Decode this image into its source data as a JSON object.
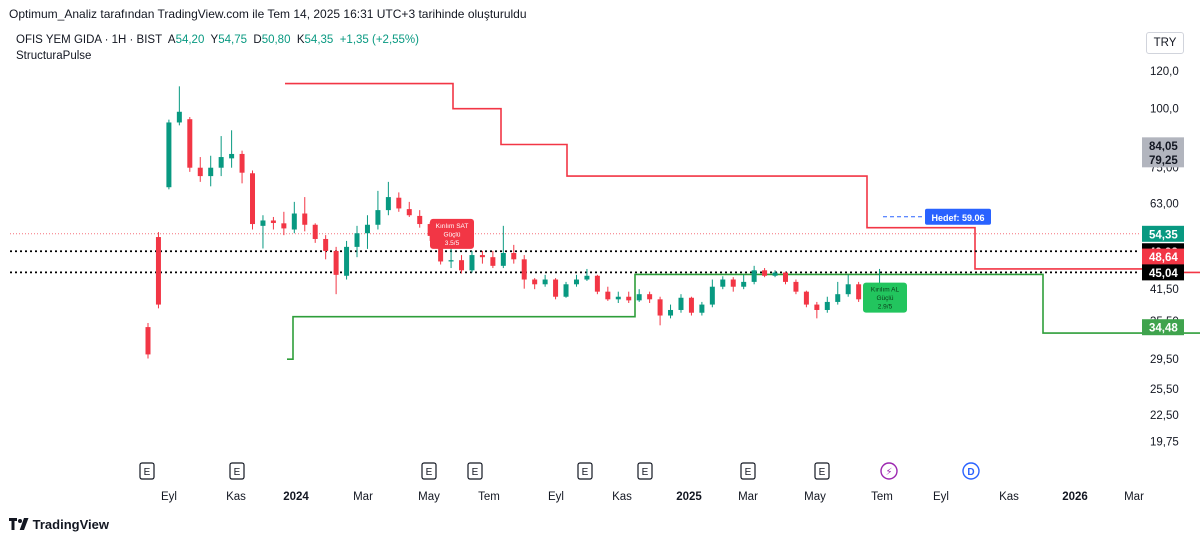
{
  "caption": "Optimum_Analiz tarafından TradingView.com ile Tem 14, 2025 16:31 UTC+3 tarihinde oluşturuldu",
  "legend": {
    "symbol": "OFIS YEM GIDA · 1H · BIST",
    "open_label": "A",
    "open": "54,20",
    "high_label": "Y",
    "high": "54,75",
    "low_label": "D",
    "low": "50,80",
    "close_label": "K",
    "close": "54,35",
    "change": "+1,35 (+2,55%)",
    "indicator": "StructuraPulse"
  },
  "currency": "TRY",
  "footer": {
    "brand": "TradingView"
  },
  "colors": {
    "up": "#089981",
    "down": "#f23645",
    "resistance": "#f23645",
    "support": "#2e9e3a",
    "dotted": "#000000",
    "price_line": "#f23645",
    "target": "#2962ff"
  },
  "chart_data": {
    "type": "candlestick",
    "y_axis": {
      "scale": "log",
      "ylim": [
        18.5,
        128
      ],
      "tick_labels": [
        "120,0",
        "100,0",
        "75,00",
        "63,00",
        "41,50",
        "35,50",
        "29,50",
        "25,50",
        "22,50",
        "19,75"
      ],
      "tick_values": [
        120.0,
        100.0,
        75.0,
        63.0,
        41.5,
        35.5,
        29.5,
        25.5,
        22.5,
        19.75
      ]
    },
    "x_axis": {
      "labels": [
        "Eyl",
        "Kas",
        "2024",
        "Mar",
        "May",
        "Tem",
        "Eyl",
        "Kas",
        "2025",
        "Mar",
        "May",
        "Tem",
        "Eyl",
        "Kas",
        "2026",
        "Mar"
      ],
      "bold": [
        "2024",
        "2025",
        "2026"
      ]
    },
    "price_badges": [
      {
        "label": "84,05",
        "value": 84.05,
        "bg": "#b2b5be",
        "fg": "#131722"
      },
      {
        "label": "79,25",
        "value": 79.25,
        "bg": "#b2b5be",
        "fg": "#131722"
      },
      {
        "label": "54,35",
        "value": 54.35,
        "bg": "#089981",
        "fg": "#ffffff"
      },
      {
        "label": "49,92",
        "value": 49.92,
        "bg": "#000000",
        "fg": "#ffffff"
      },
      {
        "label": "48,64",
        "value": 48.64,
        "bg": "#f23645",
        "fg": "#ffffff"
      },
      {
        "label": "45,04",
        "value": 45.04,
        "bg": "#000000",
        "fg": "#ffffff"
      },
      {
        "label": "34,48",
        "value": 34.48,
        "bg": "#3fa34d",
        "fg": "#ffffff"
      }
    ],
    "dotted_levels": [
      49.92,
      45.04
    ],
    "last_price": 54.35,
    "target": {
      "label": "Hedef: 59.06",
      "value": 59.06
    },
    "signals": [
      {
        "kind": "sell",
        "line1": "Kırılım SAT",
        "line2": "Güçlü",
        "line3": "3.5/5",
        "value": 52.5
      },
      {
        "kind": "buy",
        "line1": "Kırılım AL",
        "line2": "Güçlü",
        "line3": "2.9/5",
        "value": 38.5
      }
    ],
    "events": [
      "E",
      "E",
      "E",
      "E",
      "E",
      "E",
      "E",
      "E",
      "⚡",
      "D"
    ],
    "resistance_steps": [
      [
        0,
        113
      ],
      [
        28,
        113
      ],
      [
        28,
        100
      ],
      [
        36,
        100
      ],
      [
        36,
        84
      ],
      [
        47,
        84
      ],
      [
        47,
        72
      ],
      [
        97,
        72
      ],
      [
        97,
        56
      ],
      [
        115,
        56
      ],
      [
        115,
        45.8
      ],
      [
        148,
        45.8
      ],
      [
        148,
        45.04
      ],
      [
        153,
        45.04
      ],
      [
        153,
        44.6
      ],
      [
        168,
        44.6
      ],
      [
        168,
        46.2
      ],
      [
        200,
        46.2
      ],
      [
        200,
        44.6
      ],
      [
        216,
        44.6
      ],
      [
        216,
        48.64
      ],
      [
        229,
        48.64
      ]
    ],
    "support_steps": [
      [
        0,
        29.5
      ],
      [
        1,
        29.5
      ],
      [
        1,
        36.3
      ],
      [
        58,
        36.3
      ],
      [
        58,
        44.6
      ],
      [
        126,
        44.6
      ],
      [
        126,
        33.5
      ],
      [
        165,
        33.5
      ],
      [
        165,
        34.48
      ],
      [
        230,
        34.48
      ]
    ],
    "candles": [
      [
        34.5,
        30.2,
        35.2,
        29.6
      ],
      [
        53.5,
        38.5,
        54.8,
        37.8
      ],
      [
        68.2,
        93.5,
        94.8,
        67.5
      ],
      [
        93.5,
        98.5,
        111.5,
        92.2
      ],
      [
        95.0,
        75.0,
        96.0,
        73.5
      ],
      [
        75.0,
        72.0,
        79.0,
        70.0
      ],
      [
        72.0,
        75.0,
        79.5,
        68.5
      ],
      [
        75.0,
        79.0,
        87.5,
        72.0
      ],
      [
        78.5,
        80.2,
        90.0,
        75.0
      ],
      [
        80.2,
        73.2,
        81.5,
        69.5
      ],
      [
        73.0,
        57.0,
        74.0,
        55.5
      ],
      [
        56.5,
        58.0,
        59.5,
        50.6
      ],
      [
        58.0,
        57.3,
        59.0,
        55.5
      ],
      [
        57.2,
        55.8,
        60.5,
        54.0
      ],
      [
        55.5,
        60.0,
        63.5,
        54.5
      ],
      [
        60.0,
        56.8,
        65.0,
        55.0
      ],
      [
        56.8,
        53.0,
        57.2,
        52.0
      ],
      [
        53.0,
        50.0,
        54.0,
        48.0
      ],
      [
        50.0,
        44.5,
        51.0,
        40.5
      ],
      [
        44.3,
        51.0,
        52.5,
        43.5
      ],
      [
        51.0,
        54.5,
        56.5,
        48.5
      ],
      [
        54.5,
        56.8,
        59.5,
        50.5
      ],
      [
        56.8,
        61.0,
        67.0,
        55.5
      ],
      [
        61.0,
        65.0,
        70.0,
        59.5
      ],
      [
        64.8,
        61.5,
        66.5,
        60.5
      ],
      [
        61.3,
        59.5,
        63.5,
        59.0
      ],
      [
        59.3,
        57.0,
        61.0,
        56.0
      ],
      [
        57.0,
        53.8,
        57.5,
        52.5
      ],
      [
        53.8,
        47.5,
        55.0,
        46.8
      ],
      [
        47.5,
        47.8,
        51.5,
        46.0
      ],
      [
        47.8,
        45.5,
        49.0,
        44.8
      ],
      [
        45.5,
        49.0,
        50.0,
        45.0
      ],
      [
        49.0,
        48.5,
        50.0,
        47.0
      ],
      [
        48.5,
        46.5,
        50.0,
        46.0
      ],
      [
        46.5,
        49.5,
        56.5,
        46.0
      ],
      [
        49.5,
        48.0,
        51.5,
        47.0
      ],
      [
        48.0,
        43.5,
        49.0,
        41.6
      ],
      [
        43.5,
        42.5,
        43.8,
        41.5
      ],
      [
        42.5,
        43.5,
        44.5,
        42.0
      ],
      [
        43.5,
        40.0,
        43.8,
        39.5
      ],
      [
        40.0,
        42.5,
        43.0,
        39.8
      ],
      [
        42.5,
        43.5,
        44.5,
        42.0
      ],
      [
        43.5,
        44.3,
        45.8,
        43.2
      ],
      [
        44.3,
        41.0,
        44.5,
        40.5
      ],
      [
        41.0,
        39.5,
        42.0,
        39.2
      ],
      [
        39.5,
        40.0,
        41.0,
        38.8
      ],
      [
        40.0,
        39.3,
        41.0,
        38.8
      ],
      [
        39.3,
        40.5,
        41.5,
        39.0
      ],
      [
        40.5,
        39.5,
        41.0,
        38.8
      ],
      [
        39.5,
        36.5,
        40.0,
        34.8
      ],
      [
        36.5,
        37.5,
        38.5,
        36.0
      ],
      [
        37.5,
        39.8,
        40.5,
        37.0
      ],
      [
        39.8,
        37.0,
        40.0,
        36.5
      ],
      [
        37.0,
        38.5,
        39.0,
        36.5
      ],
      [
        38.5,
        42.0,
        43.5,
        38.0
      ],
      [
        42.0,
        43.5,
        44.2,
        41.5
      ],
      [
        43.5,
        42.0,
        44.0,
        41.0
      ],
      [
        42.0,
        43.0,
        44.5,
        41.5
      ],
      [
        43.0,
        45.5,
        46.5,
        42.5
      ],
      [
        45.5,
        44.3,
        46.0,
        44.0
      ],
      [
        44.3,
        45.0,
        45.5,
        44.0
      ],
      [
        45.0,
        43.0,
        45.2,
        42.5
      ],
      [
        43.0,
        41.0,
        43.5,
        40.5
      ],
      [
        41.0,
        38.5,
        41.2,
        38.0
      ],
      [
        38.5,
        37.5,
        39.0,
        36.0
      ],
      [
        37.5,
        39.0,
        40.0,
        37.0
      ],
      [
        39.0,
        40.5,
        43.0,
        38.5
      ],
      [
        40.5,
        42.5,
        44.5,
        40.0
      ],
      [
        42.5,
        39.5,
        43.0,
        39.0
      ],
      [
        39.5,
        40.5,
        42.5,
        40.0
      ],
      [
        40.5,
        42.0,
        45.8,
        40.0
      ],
      [
        42.0,
        39.0,
        42.5,
        38.5
      ]
    ]
  }
}
